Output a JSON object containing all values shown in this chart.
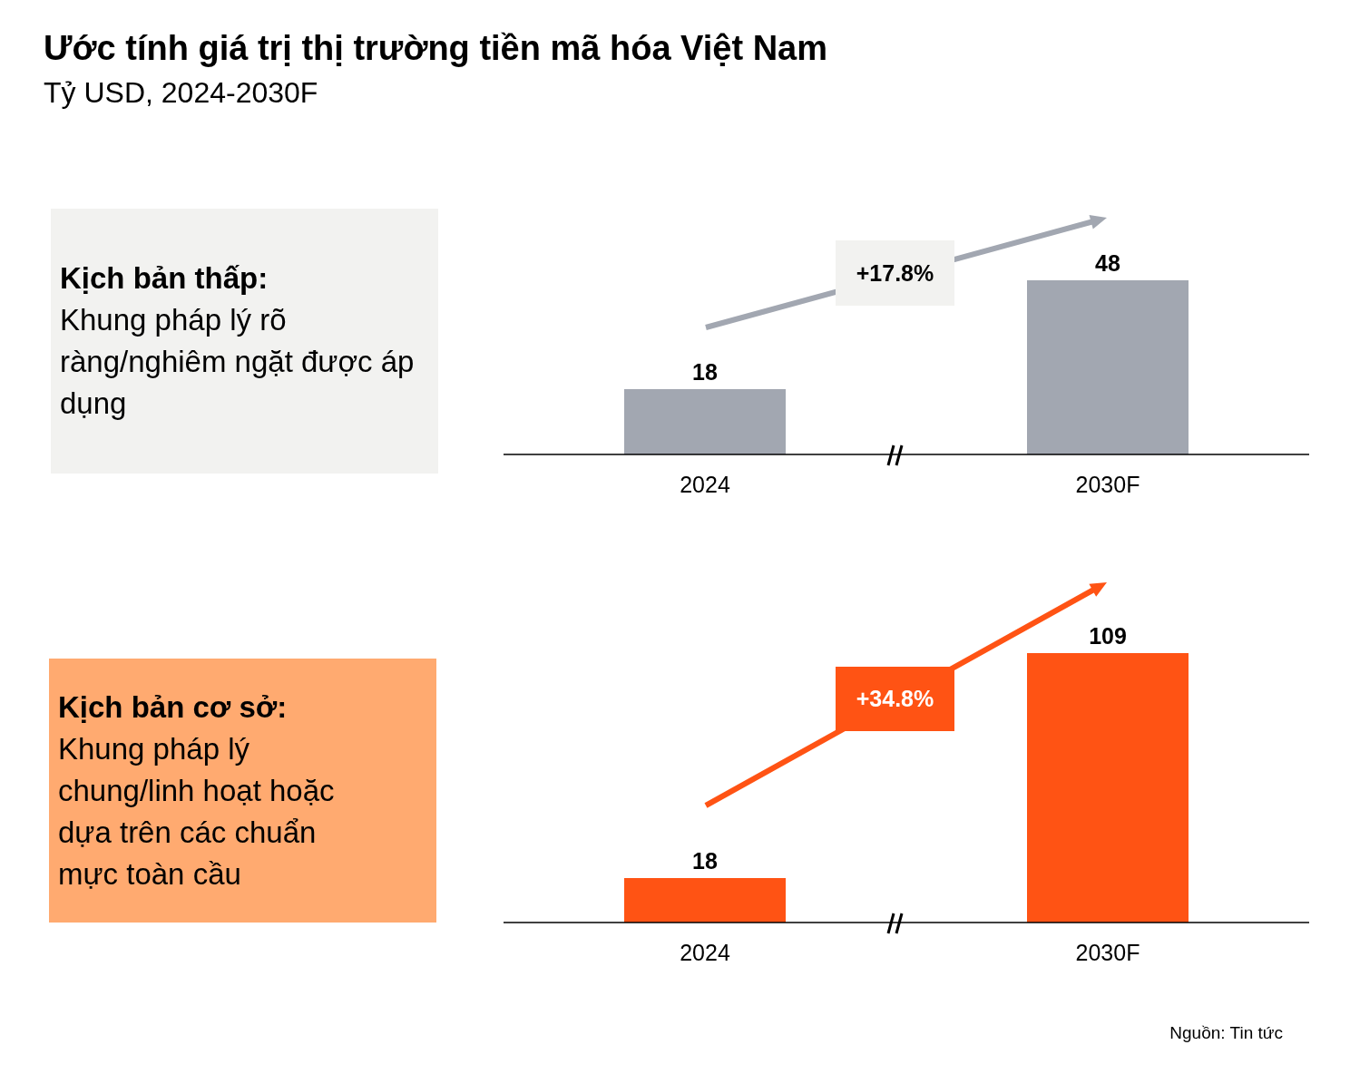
{
  "chart_data": [
    {
      "type": "other",
      "title": "Ước tính giá trị thị trường tiền mã hóa Việt Nam",
      "subtitle": "Tỷ USD, 2024-2030F"
    },
    {
      "type": "bar",
      "categories": [
        "2024",
        "2030F"
      ],
      "values": [
        18,
        48
      ],
      "color": "#a2a7b1",
      "data_labels": true,
      "annotations": [
        "Kịch bản thấp:",
        "Khung pháp lý rõ ràng/nghiêm ngặt được áp dụng",
        "+17.8%"
      ]
    },
    {
      "type": "bar",
      "categories": [
        "2024",
        "2030F"
      ],
      "values": [
        18,
        109
      ],
      "color": "#ff5314",
      "data_labels": true,
      "annotations": [
        "Kịch bản cơ sở:",
        "Khung pháp lý chung/linh hoạt hoặc dựa trên các chuẩn mực toàn cầu",
        "+34.8%",
        "Nguồn: Tin tức"
      ]
    }
  ]
}
